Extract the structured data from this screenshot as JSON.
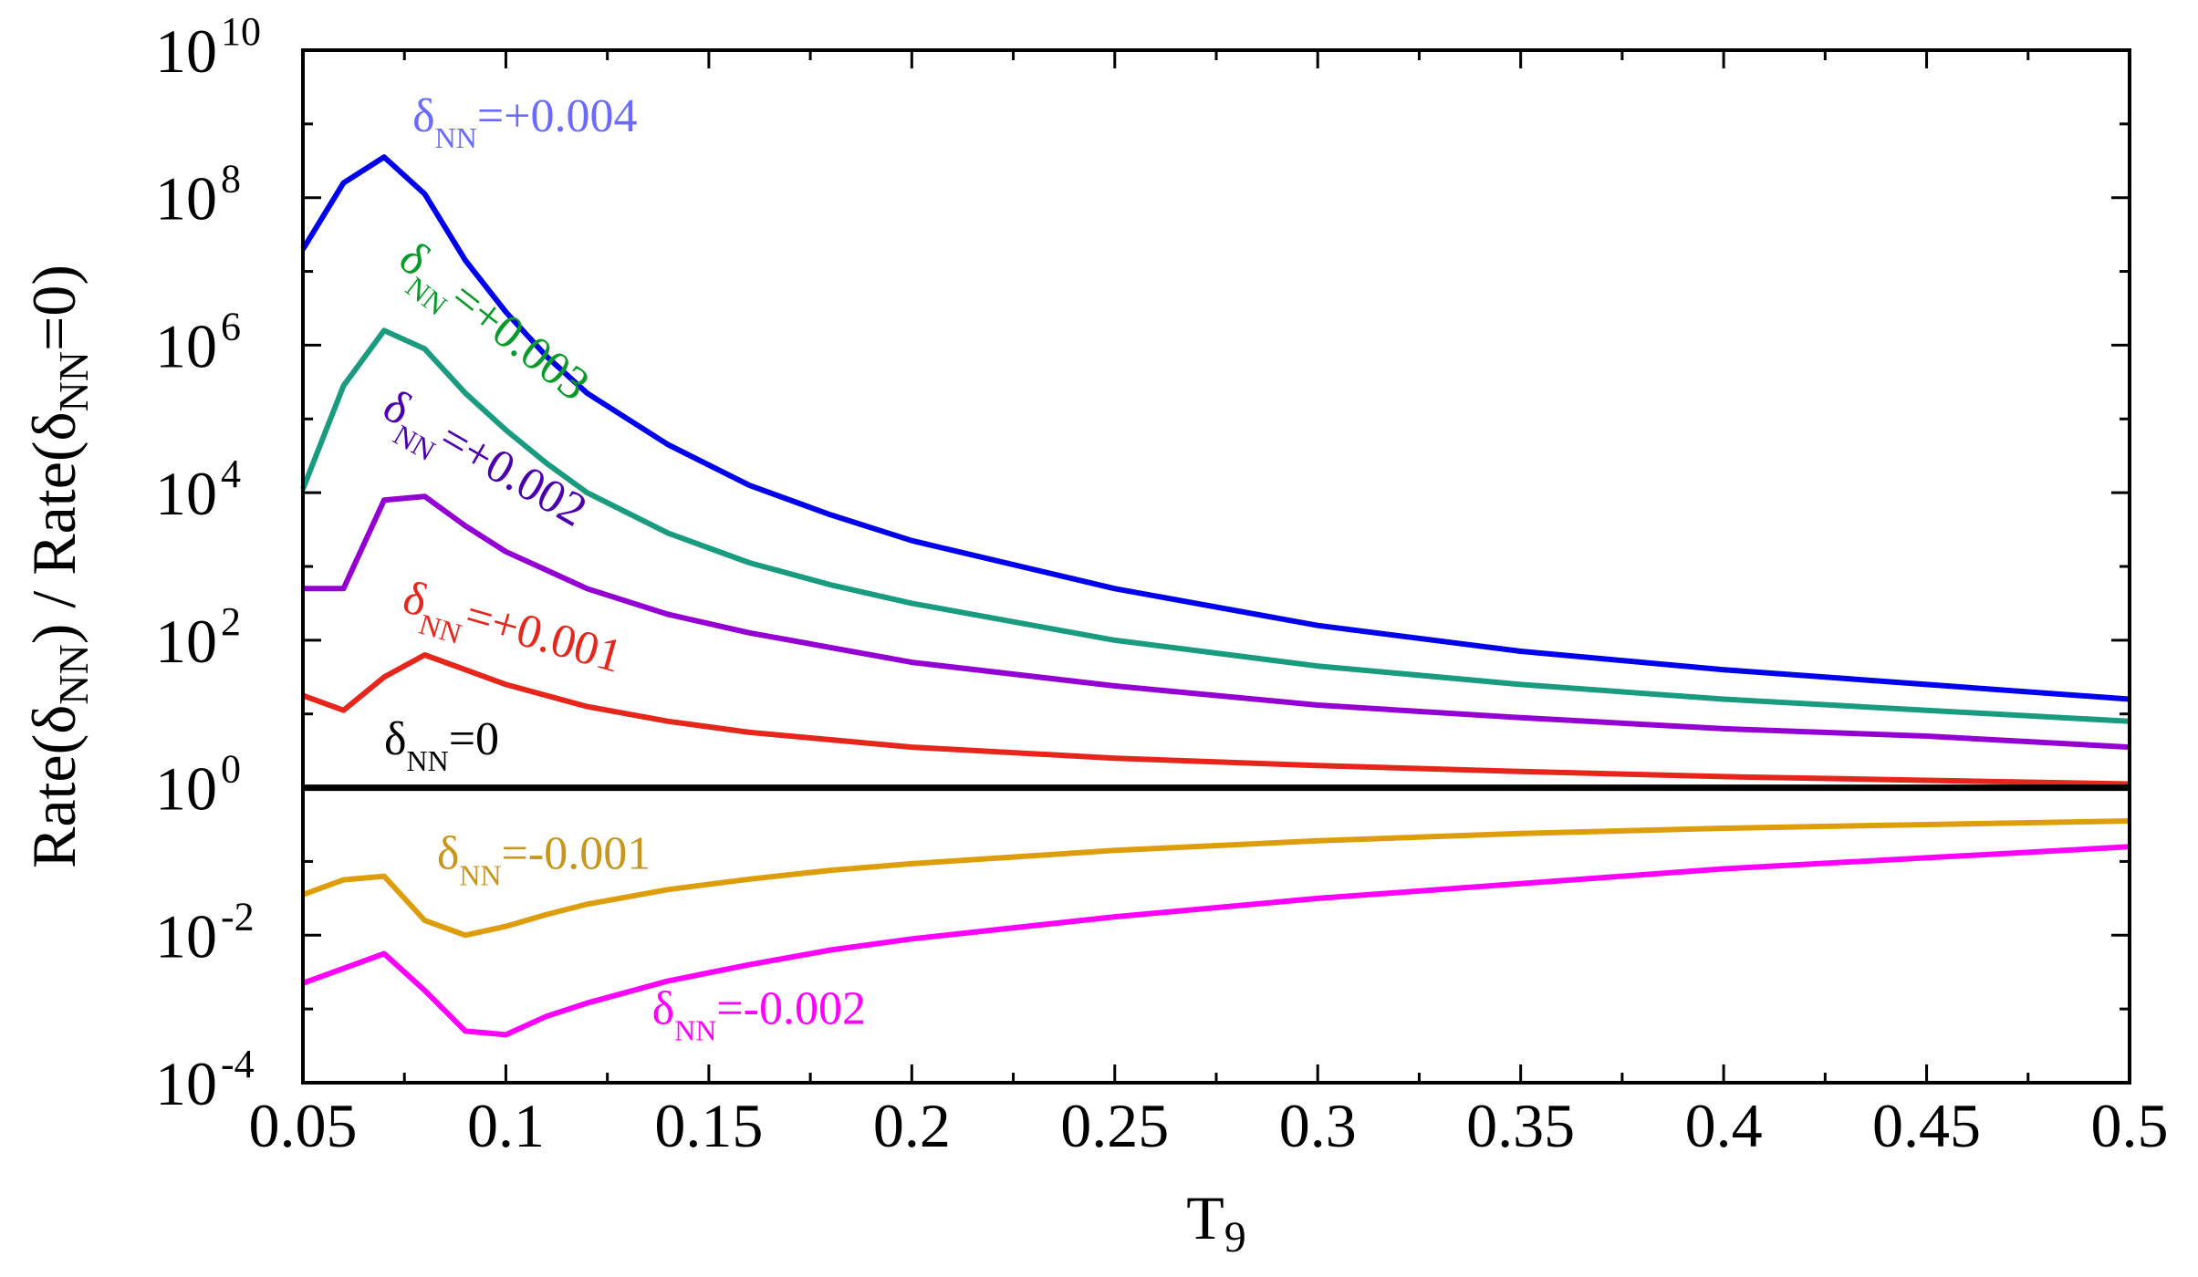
{
  "chart_data": {
    "type": "line",
    "xlabel": "T",
    "xlabel_sub": "9",
    "ylabel": "Rate(δNN) / Rate(δNN=0)",
    "ylabel_parts": [
      "Rate(δ",
      "NN",
      ") / Rate(δ",
      "NN",
      "=0)"
    ],
    "yscale": "log",
    "xlim": [
      0.05,
      0.5
    ],
    "ylim_exp": [
      -4,
      10
    ],
    "x_ticks": [
      {
        "value": 0.05,
        "label": "0.05"
      },
      {
        "value": 0.1,
        "label": "0.1"
      },
      {
        "value": 0.15,
        "label": "0.15"
      },
      {
        "value": 0.2,
        "label": "0.2"
      },
      {
        "value": 0.25,
        "label": "0.25"
      },
      {
        "value": 0.3,
        "label": "0.3"
      },
      {
        "value": 0.35,
        "label": "0.35"
      },
      {
        "value": 0.4,
        "label": "0.4"
      },
      {
        "value": 0.45,
        "label": "0.45"
      },
      {
        "value": 0.5,
        "label": "0.5"
      }
    ],
    "y_ticks": [
      {
        "exp": -4,
        "base": "10",
        "sup": "-4"
      },
      {
        "exp": -2,
        "base": "10",
        "sup": "-2"
      },
      {
        "exp": 0,
        "base": "10",
        "sup": "0"
      },
      {
        "exp": 2,
        "base": "10",
        "sup": "2"
      },
      {
        "exp": 4,
        "base": "10",
        "sup": "4"
      },
      {
        "exp": 6,
        "base": "10",
        "sup": "6"
      },
      {
        "exp": 8,
        "base": "10",
        "sup": "8"
      },
      {
        "exp": 10,
        "base": "10",
        "sup": "10"
      }
    ],
    "x": [
      0.05,
      0.06,
      0.07,
      0.08,
      0.09,
      0.1,
      0.11,
      0.12,
      0.14,
      0.16,
      0.18,
      0.2,
      0.25,
      0.3,
      0.35,
      0.4,
      0.45,
      0.5
    ],
    "series": [
      {
        "name": "δNN=+0.004",
        "color": "#0000ee",
        "log10_values": [
          7.3,
          8.2,
          8.55,
          8.05,
          7.15,
          6.45,
          5.85,
          5.35,
          4.65,
          4.1,
          3.7,
          3.35,
          2.7,
          2.2,
          1.85,
          1.6,
          1.4,
          1.2
        ]
      },
      {
        "name": "δNN=+0.003",
        "color": "#199b80",
        "log10_values": [
          4.05,
          5.45,
          6.2,
          5.95,
          5.35,
          4.85,
          4.4,
          4.0,
          3.45,
          3.05,
          2.75,
          2.5,
          2.0,
          1.65,
          1.4,
          1.2,
          1.05,
          0.9
        ]
      },
      {
        "name": "δNN=+0.002",
        "color": "#9400d3",
        "log10_values": [
          2.7,
          2.7,
          3.9,
          3.95,
          3.55,
          3.2,
          2.95,
          2.7,
          2.35,
          2.1,
          1.9,
          1.7,
          1.38,
          1.12,
          0.95,
          0.8,
          0.7,
          0.55
        ]
      },
      {
        "name": "δNN=+0.001",
        "color": "#e6251b",
        "log10_values": [
          1.25,
          1.05,
          1.5,
          1.8,
          1.6,
          1.4,
          1.25,
          1.1,
          0.9,
          0.75,
          0.65,
          0.55,
          0.4,
          0.3,
          0.22,
          0.15,
          0.1,
          0.05
        ]
      },
      {
        "name": "δNN=0",
        "color": "#000000",
        "log10_values": [
          0,
          0,
          0,
          0,
          0,
          0,
          0,
          0,
          0,
          0,
          0,
          0,
          0,
          0,
          0,
          0,
          0,
          0
        ]
      },
      {
        "name": "δNN=-0.001",
        "color": "#de9e0b",
        "log10_values": [
          -1.45,
          -1.25,
          -1.2,
          -1.8,
          -2.0,
          -1.88,
          -1.72,
          -1.58,
          -1.38,
          -1.24,
          -1.12,
          -1.03,
          -0.85,
          -0.72,
          -0.62,
          -0.55,
          -0.5,
          -0.45
        ]
      },
      {
        "name": "δNN=-0.002",
        "color": "#ff00ff",
        "log10_values": [
          -2.65,
          -2.45,
          -2.25,
          -2.75,
          -3.3,
          -3.35,
          -3.1,
          -2.92,
          -2.62,
          -2.4,
          -2.2,
          -2.05,
          -1.75,
          -1.5,
          -1.3,
          -1.1,
          -0.95,
          -0.8
        ]
      }
    ],
    "annotations": [
      {
        "id": "p004",
        "base": "δ",
        "sub": "NN",
        "rest": "=+0.004",
        "color": "#6a6aff",
        "x": 0.077,
        "y_exp": 8.9,
        "rotate": 0
      },
      {
        "id": "p003",
        "base": "δ",
        "sub": "NN",
        "rest": "=+0.003",
        "color": "#0a9a2a",
        "x": 0.073,
        "y_exp": 7.1,
        "rotate": 38
      },
      {
        "id": "p002",
        "base": "δ",
        "sub": "NN",
        "rest": "=+0.002",
        "color": "#4b00b0",
        "x": 0.069,
        "y_exp": 5.05,
        "rotate": 30
      },
      {
        "id": "p001",
        "base": "δ",
        "sub": "NN",
        "rest": "=+0.001",
        "color": "#e6251b",
        "x": 0.074,
        "y_exp": 2.4,
        "rotate": 16
      },
      {
        "id": "zero",
        "base": "δ",
        "sub": "NN",
        "rest": "=0",
        "color": "#000000",
        "x": 0.07,
        "y_exp": 0.45,
        "rotate": 0
      },
      {
        "id": "m001",
        "base": "δ",
        "sub": "NN",
        "rest": "=-0.001",
        "color": "#c8961a",
        "x": 0.083,
        "y_exp": -1.1,
        "rotate": 0
      },
      {
        "id": "m002",
        "base": "δ",
        "sub": "NN",
        "rest": "=-0.002",
        "color": "#ff00ff",
        "x": 0.136,
        "y_exp": -3.2,
        "rotate": 0
      }
    ]
  }
}
